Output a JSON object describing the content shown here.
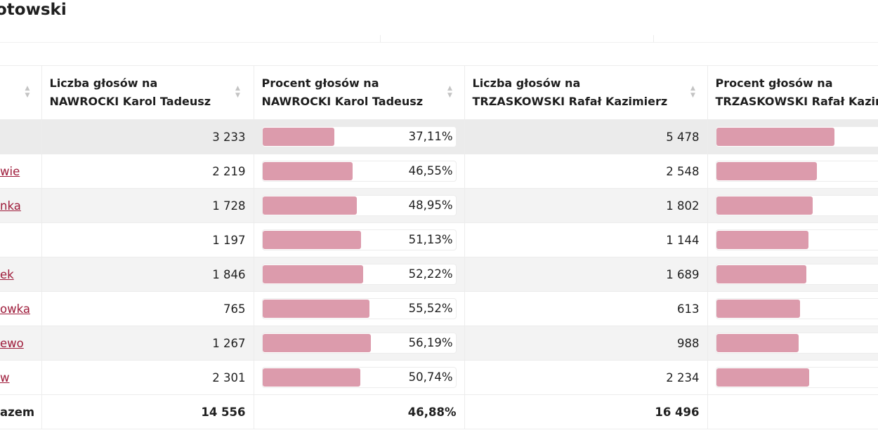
{
  "title": "otowski",
  "table": {
    "headers": {
      "col0": "",
      "nawrocki_votes": [
        "Liczba głosów na",
        "NAWROCKI Karol Tadeusz"
      ],
      "nawrocki_pct": [
        "Procent głosów na",
        "NAWROCKI Karol Tadeusz"
      ],
      "trzaskowski_votes": [
        "Liczba głosów na",
        "TRZASKOWSKI Rafał Kazimierz"
      ],
      "trzaskowski_pct": [
        "Procent głosów na",
        "TRZASKOWSKI Rafał Kazimierz"
      ]
    },
    "sort_icon": "sort-up-down-icon",
    "bar_color": "#dc9bac",
    "link_color": "#9e1b3a",
    "rows": [
      {
        "name": "",
        "link": false,
        "nawrocki_votes": "3 233",
        "nawrocki_pct": "37,11%",
        "nawrocki_fraction": 0.3711,
        "trzaskowski_votes": "5 478",
        "trzaskowski_fraction": 0.6289
      },
      {
        "name": "wie",
        "link": true,
        "nawrocki_votes": "2 219",
        "nawrocki_pct": "46,55%",
        "nawrocki_fraction": 0.4655,
        "trzaskowski_votes": "2 548",
        "trzaskowski_fraction": 0.5345
      },
      {
        "name": "nka",
        "link": true,
        "nawrocki_votes": "1 728",
        "nawrocki_pct": "48,95%",
        "nawrocki_fraction": 0.4895,
        "trzaskowski_votes": "1 802",
        "trzaskowski_fraction": 0.5105
      },
      {
        "name": "",
        "link": false,
        "nawrocki_votes": "1 197",
        "nawrocki_pct": "51,13%",
        "nawrocki_fraction": 0.5113,
        "trzaskowski_votes": "1 144",
        "trzaskowski_fraction": 0.4887
      },
      {
        "name": "ek",
        "link": true,
        "nawrocki_votes": "1 846",
        "nawrocki_pct": "52,22%",
        "nawrocki_fraction": 0.5222,
        "trzaskowski_votes": "1 689",
        "trzaskowski_fraction": 0.4778
      },
      {
        "name": "owka",
        "link": true,
        "nawrocki_votes": "765",
        "nawrocki_pct": "55,52%",
        "nawrocki_fraction": 0.5552,
        "trzaskowski_votes": "613",
        "trzaskowski_fraction": 0.4448
      },
      {
        "name": "ewo",
        "link": true,
        "nawrocki_votes": "1 267",
        "nawrocki_pct": "56,19%",
        "nawrocki_fraction": 0.5619,
        "trzaskowski_votes": "988",
        "trzaskowski_fraction": 0.4381
      },
      {
        "name": "w",
        "link": true,
        "nawrocki_votes": "2 301",
        "nawrocki_pct": "50,74%",
        "nawrocki_fraction": 0.5074,
        "trzaskowski_votes": "2 234",
        "trzaskowski_fraction": 0.4926
      }
    ],
    "total": {
      "label": "azem",
      "nawrocki_votes": "14 556",
      "nawrocki_pct": "46,88%",
      "trzaskowski_votes": "16 496"
    }
  }
}
